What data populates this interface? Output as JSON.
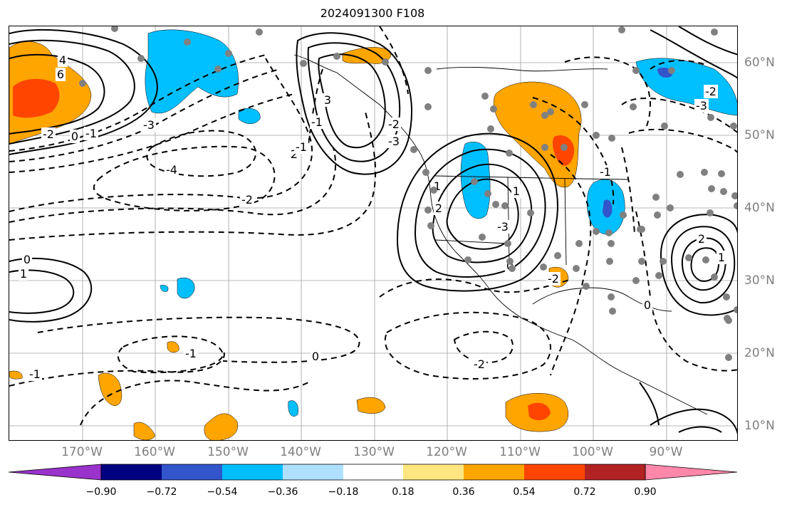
{
  "title": "2024091300 F108",
  "longitude_labels": [
    "170°W",
    "160°W",
    "150°W",
    "140°W",
    "130°W",
    "120°W",
    "110°W",
    "100°W",
    "90°W"
  ],
  "latitude_labels": [
    "60°N",
    "50°N",
    "40°N",
    "30°N",
    "20°N",
    "10°N"
  ],
  "contour_labels": [
    "4",
    "6",
    "-2",
    "0",
    "-1",
    "-3",
    "-4",
    "-2",
    "2",
    "-1",
    "3",
    "-1",
    "-2",
    "-3",
    "1",
    "2",
    "-3",
    "0",
    "-2",
    "0",
    "-1",
    "1",
    "0",
    "-2",
    "-3",
    "-2",
    "-1",
    "1",
    "-1",
    "0",
    "2",
    "1"
  ],
  "colorbar": {
    "ticks": [
      "−0.90",
      "−0.72",
      "−0.54",
      "−0.36",
      "−0.18",
      "0.18",
      "0.36",
      "0.54",
      "0.72",
      "0.90"
    ],
    "colors": [
      "#9933cc",
      "#000080",
      "#3355cc",
      "#00bfff",
      "#b0e0ff",
      "#ffffff",
      "#ffe680",
      "#ffa500",
      "#ff4500",
      "#b22222",
      "#ff88aa"
    ]
  }
}
